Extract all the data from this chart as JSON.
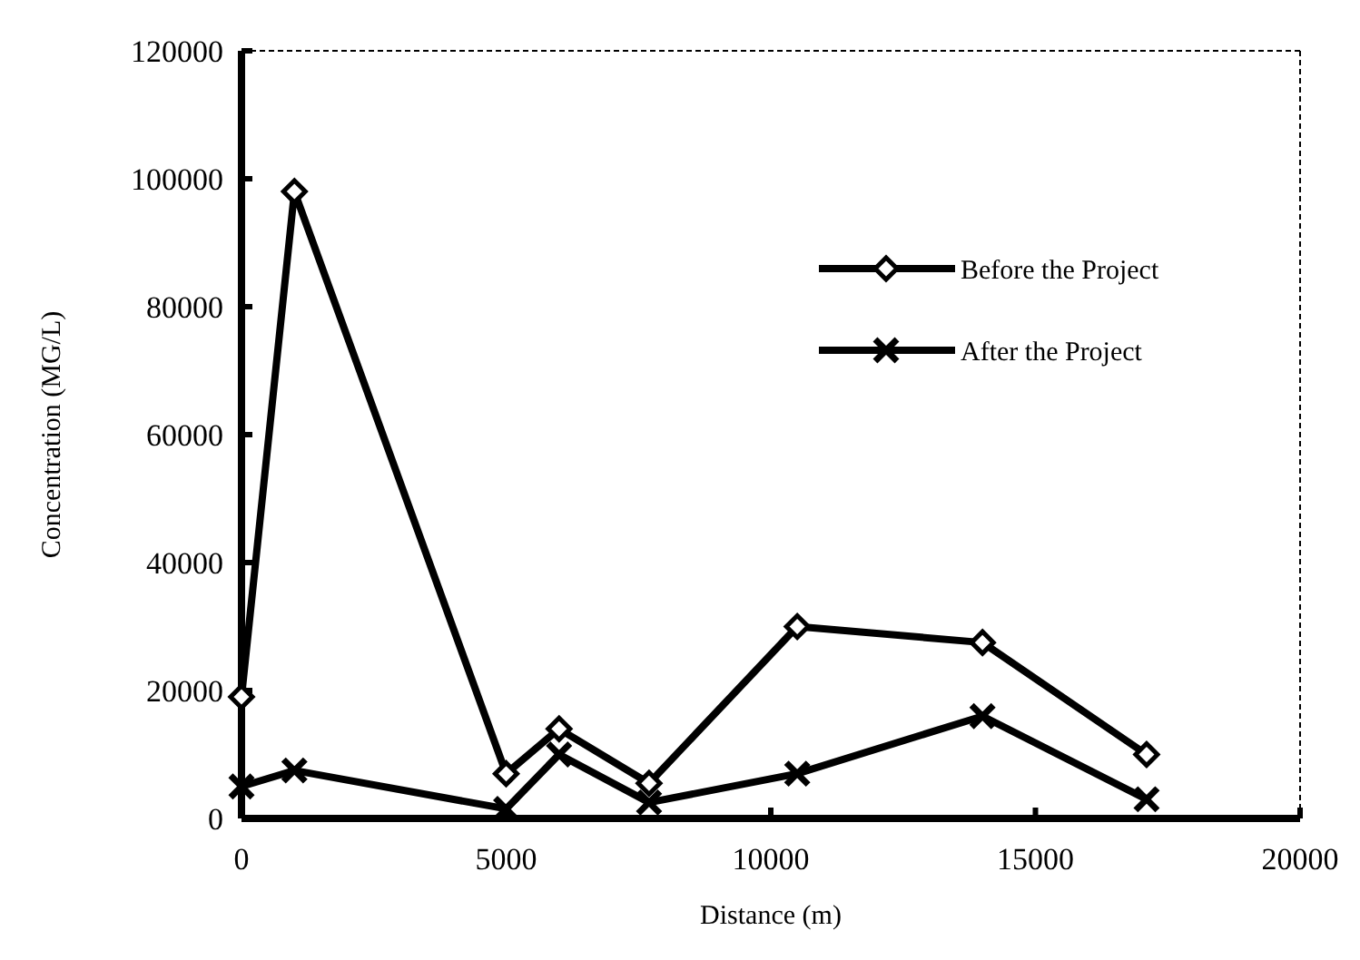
{
  "chart_data": {
    "type": "line",
    "xlabel": "Distance (m)",
    "ylabel": "Concentration (MG/L)",
    "xlim": [
      0,
      20000
    ],
    "xticks": [
      0,
      5000,
      10000,
      15000,
      20000
    ],
    "ylim": [
      0,
      120000
    ],
    "yticks": [
      0,
      20000,
      40000,
      60000,
      80000,
      100000,
      120000
    ],
    "legend": "top right",
    "grid": false,
    "series": [
      {
        "name": "Before the Project",
        "color": "#000000",
        "marker": "diamond",
        "x": [
          0,
          1000,
          5000,
          6000,
          7700,
          10500,
          14000,
          17100
        ],
        "values": [
          19000,
          98000,
          7000,
          14000,
          5500,
          30000,
          27500,
          10000
        ]
      },
      {
        "name": "After the Project",
        "color": "#000000",
        "marker": "cross",
        "x": [
          0,
          1000,
          5000,
          6000,
          7700,
          10500,
          14000,
          17100
        ],
        "values": [
          5000,
          7500,
          1500,
          10000,
          2500,
          7000,
          16000,
          3000
        ]
      }
    ]
  }
}
